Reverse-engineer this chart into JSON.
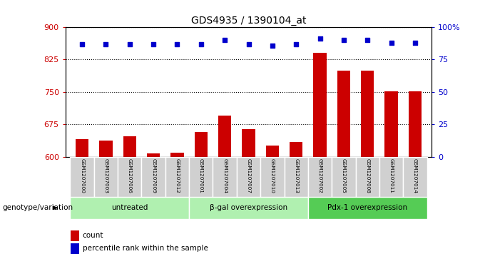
{
  "title": "GDS4935 / 1390104_at",
  "samples": [
    "GSM1207000",
    "GSM1207003",
    "GSM1207006",
    "GSM1207009",
    "GSM1207012",
    "GSM1207001",
    "GSM1207004",
    "GSM1207007",
    "GSM1207010",
    "GSM1207013",
    "GSM1207002",
    "GSM1207005",
    "GSM1207008",
    "GSM1207011",
    "GSM1207014"
  ],
  "counts": [
    640,
    637,
    648,
    607,
    609,
    657,
    695,
    664,
    626,
    634,
    840,
    800,
    800,
    752,
    752
  ],
  "percentiles": [
    87,
    87,
    87,
    87,
    87,
    87,
    90,
    87,
    86,
    87,
    91,
    90,
    90,
    88,
    88
  ],
  "groups": [
    {
      "label": "untreated",
      "start": 0,
      "end": 5
    },
    {
      "label": "β-gal overexpression",
      "start": 5,
      "end": 10
    },
    {
      "label": "Pdx-1 overexpression",
      "start": 10,
      "end": 15
    }
  ],
  "ylim_left": [
    600,
    900
  ],
  "ylim_right": [
    0,
    100
  ],
  "yticks_left": [
    600,
    675,
    750,
    825,
    900
  ],
  "yticks_right": [
    0,
    25,
    50,
    75,
    100
  ],
  "bar_color": "#cc0000",
  "dot_color": "#0000cc",
  "label_bg": "#d0d0d0",
  "group_bg_light": "#b0f0b0",
  "group_bg_dark": "#55cc55",
  "ylabel_left_color": "#cc0000",
  "ylabel_right_color": "#0000cc",
  "bar_width": 0.55
}
